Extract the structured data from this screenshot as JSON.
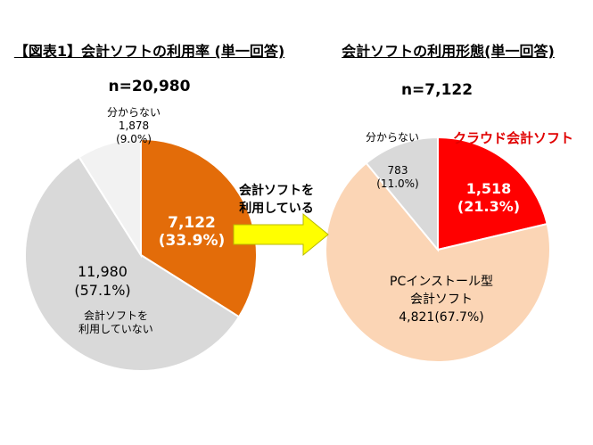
{
  "titles": {
    "left": "【図表1】会計ソフトの利用率 (単一回答)",
    "right": "会計ソフトの利用形態(単一回答)"
  },
  "n": {
    "left": "n=20,980",
    "right": "n=7,122"
  },
  "arrow": {
    "line1": "会計ソフトを",
    "line2": "利用している",
    "color": "#ffff00"
  },
  "chart_data": [
    {
      "type": "pie",
      "title": "【図表1】会計ソフトの利用率 (単一回答)",
      "n": 20980,
      "slices": [
        {
          "name": "会計ソフトを利用している",
          "value": 7122,
          "percent": 33.9,
          "color": "#e36c09",
          "labels": {
            "line1": "7,122",
            "line2": "(33.9%)"
          }
        },
        {
          "name": "会計ソフトを利用していない",
          "value": 11980,
          "percent": 57.1,
          "color": "#d9d9d9",
          "labels": {
            "line1": "11,980",
            "line2": "(57.1%)",
            "line3": "会計ソフトを",
            "line4": "利用していない"
          }
        },
        {
          "name": "分からない",
          "value": 1878,
          "percent": 9.0,
          "color": "#f2f2f2",
          "labels": {
            "line1": "分からない",
            "line2": "1,878",
            "line3": "(9.0%)"
          }
        }
      ]
    },
    {
      "type": "pie",
      "title": "会計ソフトの利用形態(単一回答)",
      "n": 7122,
      "slices": [
        {
          "name": "クラウド会計ソフト",
          "value": 1518,
          "percent": 21.3,
          "color": "#ff0000",
          "labels": {
            "name": "クラウド会計ソフト",
            "line1": "1,518",
            "line2": "(21.3%)"
          }
        },
        {
          "name": "PCインストール型会計ソフト",
          "value": 4821,
          "percent": 67.7,
          "color": "#fbd5b5",
          "labels": {
            "line1": "PCインストール型",
            "line2": "会計ソフト",
            "line3": "4,821(67.7%)"
          }
        },
        {
          "name": "分からない",
          "value": 783,
          "percent": 11.0,
          "color": "#d9d9d9",
          "labels": {
            "name": "分からない",
            "line1": "783",
            "line2": "(11.0%)"
          }
        }
      ]
    }
  ]
}
